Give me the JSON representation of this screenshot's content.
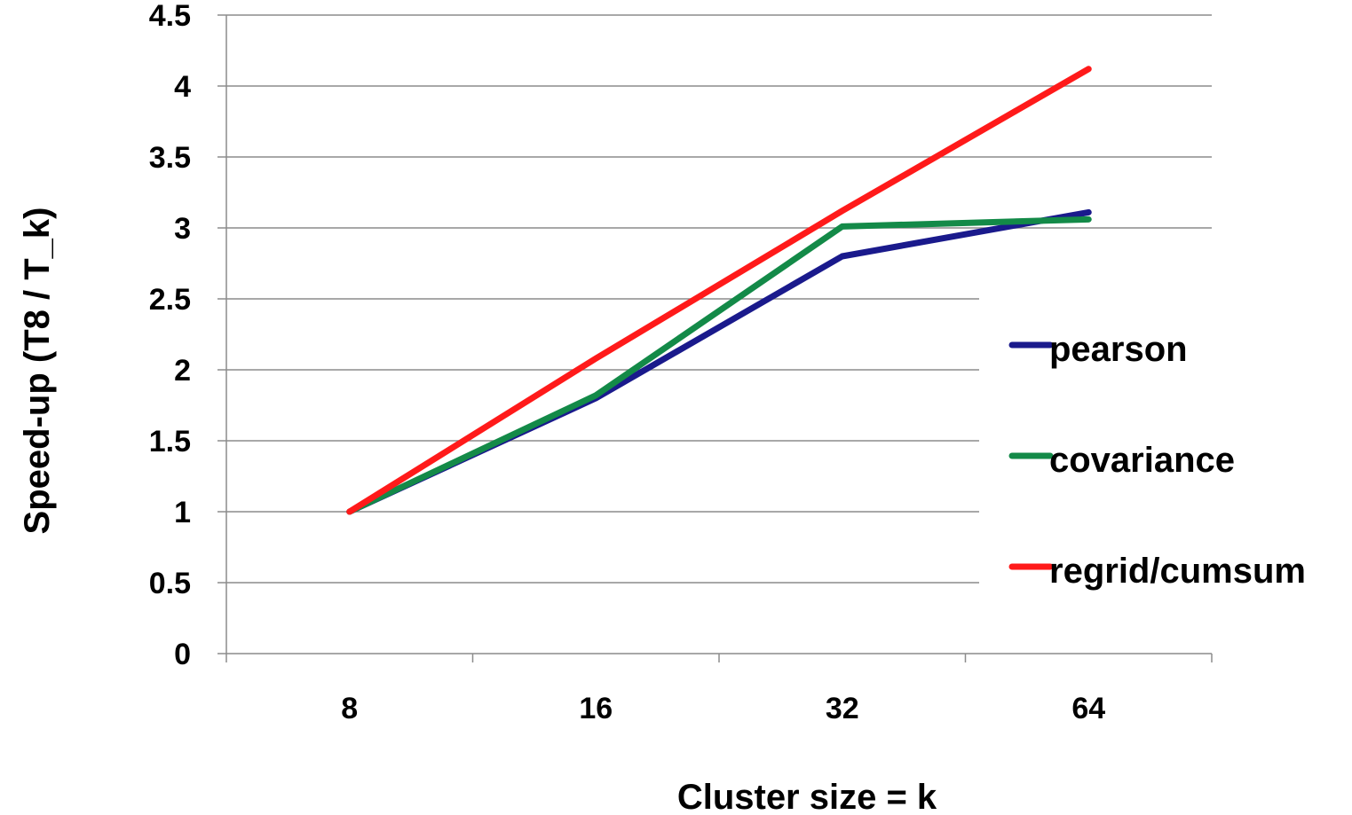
{
  "chart_data": {
    "type": "line",
    "categories": [
      "8",
      "16",
      "32",
      "64"
    ],
    "xlabel": "Cluster size = k",
    "ylabel": "Speed-up (T8 / T_k)",
    "ylim": [
      0,
      4.5
    ],
    "yticks": [
      "0",
      "0.5",
      "1",
      "1.5",
      "2",
      "2.5",
      "3",
      "3.5",
      "4",
      "4.5"
    ],
    "grid": "horizontal",
    "legend_position": "right",
    "series": [
      {
        "name": "pearson",
        "color": "#1a1a8c",
        "values": [
          1.0,
          1.8,
          2.8,
          3.11
        ]
      },
      {
        "name": "covariance",
        "color": "#138a48",
        "values": [
          1.0,
          1.82,
          3.01,
          3.06
        ]
      },
      {
        "name": "regrid/cumsum",
        "color": "#ff1a1a",
        "values": [
          1.0,
          2.08,
          3.12,
          4.12
        ]
      }
    ]
  }
}
